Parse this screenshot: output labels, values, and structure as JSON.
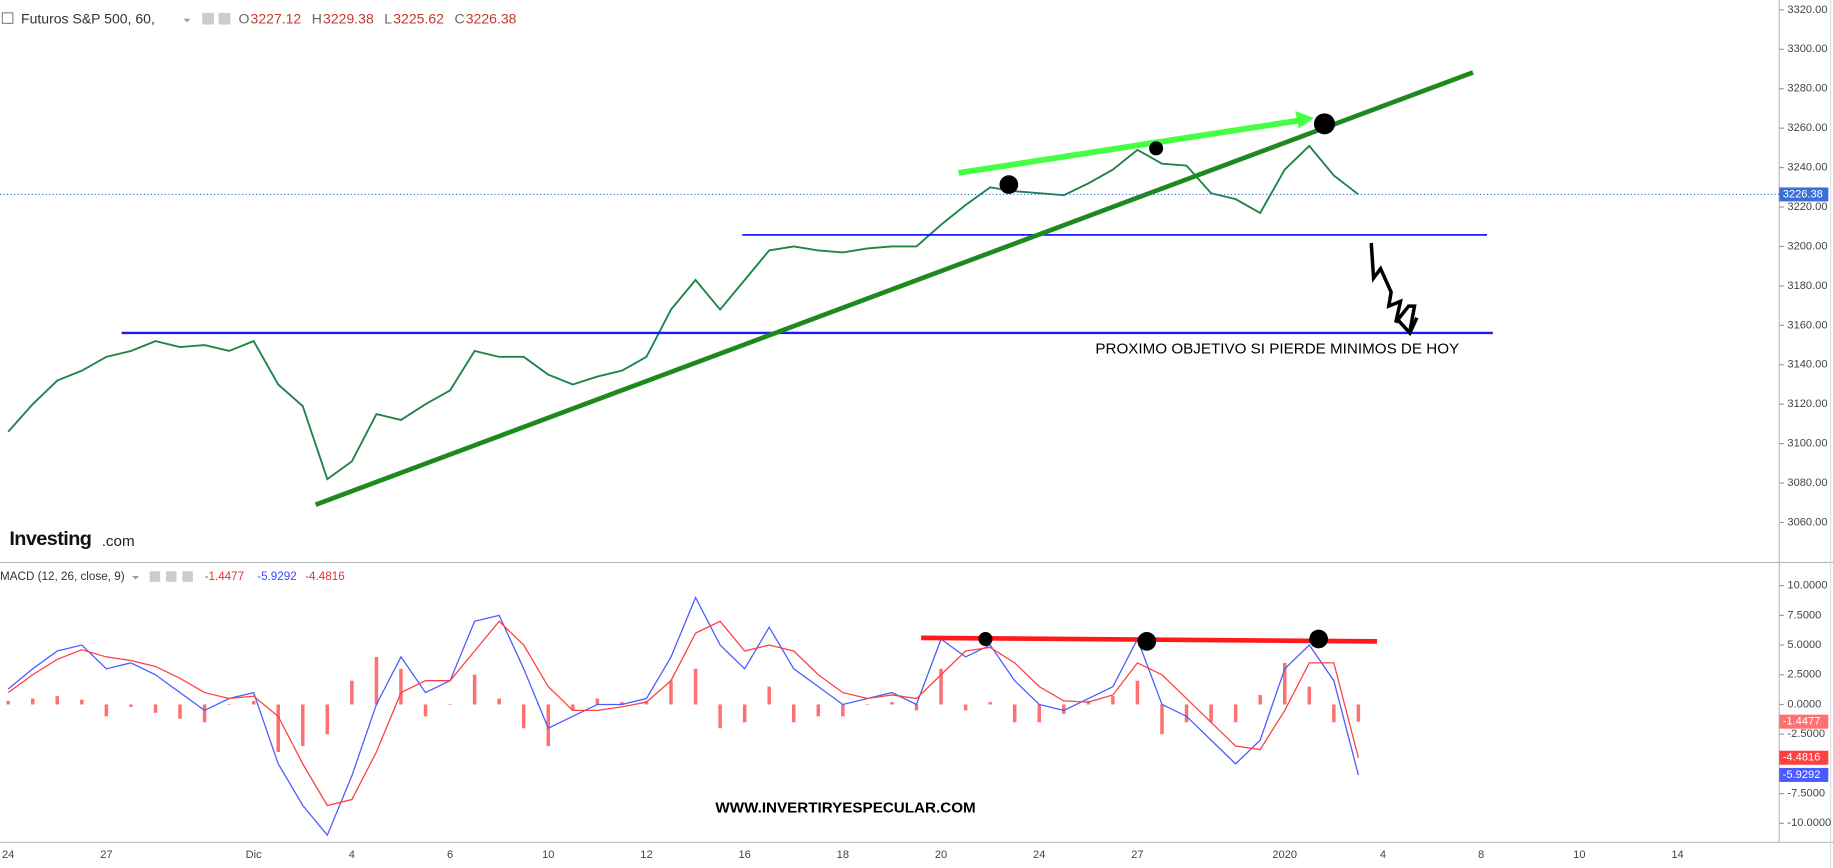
{
  "header": {
    "title": "Futuros S&P 500, 60,",
    "ohlc": [
      {
        "key": "O",
        "value": 3227.12
      },
      {
        "key": "H",
        "value": 3229.38
      },
      {
        "key": "L",
        "value": 3225.62
      },
      {
        "key": "C",
        "value": 3226.38
      }
    ],
    "logo": "Investing",
    "logo_suffix": ".com",
    "macd_title": "MACD (12, 26, close, 9)",
    "annotation": "PROXIMO OBJETIVO SI PIERDE MINIMOS DE HOY",
    "watermark": "WWW.INVERTIRYESPECULAR.COM"
  },
  "chart_data": [
    {
      "type": "line",
      "color": "#1e8449",
      "last_value_color": "#3a6fd8",
      "ylim": [
        3040,
        3325
      ],
      "yticks": [
        {
          "value": 3320,
          "label": "3320.00"
        },
        {
          "value": 3300,
          "label": "3300.00"
        },
        {
          "value": 3280,
          "label": "3280.00"
        },
        {
          "value": 3260,
          "label": "3260.00"
        },
        {
          "value": 3240,
          "label": "3240.00"
        },
        {
          "value": 3220,
          "label": "3220.00"
        },
        {
          "value": 3200,
          "label": "3200.00"
        },
        {
          "value": 3180,
          "label": "3180.00"
        },
        {
          "value": 3160,
          "label": "3160.00"
        },
        {
          "value": 3140,
          "label": "3140.00"
        },
        {
          "value": 3120,
          "label": "3120.00"
        },
        {
          "value": 3100,
          "label": "3100.00"
        },
        {
          "value": 3080,
          "label": "3080.00"
        },
        {
          "value": 3060,
          "label": "3060.00"
        }
      ],
      "values": [
        3106,
        3120,
        3132,
        3137,
        3144,
        3147,
        3152,
        3149,
        3150,
        3147,
        3152,
        3130,
        3119,
        3082,
        3091,
        3115,
        3112,
        3120,
        3127,
        3147,
        3144,
        3144,
        3135,
        3130,
        3134,
        3137,
        3144,
        3168,
        3183,
        3168,
        3183,
        3198,
        3200,
        3198,
        3197,
        3199,
        3200,
        3200,
        3211,
        3221,
        3230,
        3228,
        3227,
        3226,
        3232,
        3239,
        3249,
        3242,
        3241,
        3227,
        3224,
        3217,
        3239,
        3251,
        3236,
        3226.38,
        null,
        null,
        null,
        null,
        null,
        null,
        null,
        null,
        null,
        null,
        null,
        null,
        null,
        null,
        null,
        null
      ]
    },
    {
      "type": "line",
      "categories": [
        "24",
        null,
        null,
        null,
        "27",
        null,
        null,
        null,
        null,
        null,
        "Dic",
        null,
        null,
        null,
        "4",
        null,
        null,
        null,
        "6",
        null,
        null,
        null,
        "10",
        null,
        null,
        null,
        "12",
        null,
        null,
        null,
        "16",
        null,
        null,
        null,
        "18",
        null,
        null,
        null,
        "20",
        null,
        null,
        null,
        "24",
        null,
        null,
        null,
        "27",
        null,
        null,
        null,
        null,
        null,
        "2020",
        null,
        null,
        null,
        "4",
        null,
        null,
        null,
        "8",
        null,
        null,
        null,
        "10",
        null,
        null,
        null,
        "14",
        null,
        null,
        null
      ],
      "ylim": [
        -11.5,
        11.7
      ],
      "yticks": [
        {
          "value": 10,
          "label": "10.0000"
        },
        {
          "value": 7.5,
          "label": "7.5000"
        },
        {
          "value": 5,
          "label": "5.0000"
        },
        {
          "value": 2.5,
          "label": "2.5000"
        },
        {
          "value": 0,
          "label": "0.0000"
        },
        {
          "value": -2.5,
          "label": "-2.5000"
        },
        {
          "value": -7.5,
          "label": "-7.5000"
        },
        {
          "value": -10,
          "label": "-10.0000"
        }
      ],
      "series": [
        {
          "type": "bar",
          "color": "#ff7070",
          "values": [
            0.3,
            0.5,
            0.7,
            0.4,
            -1,
            -0.2,
            -0.7,
            -1.2,
            -1.5,
            0,
            0.3,
            -4,
            -3.5,
            -2.5,
            2,
            4,
            3,
            -1,
            0,
            2.5,
            0.5,
            -2,
            -3.5,
            -0.5,
            0.5,
            0.2,
            0.3,
            2,
            3,
            -2,
            -1.5,
            1.5,
            -1.5,
            -1,
            -1,
            0,
            0.2,
            -0.5,
            3,
            -0.5,
            0.2,
            -1.5,
            -1.5,
            -0.8,
            0.3,
            0.7,
            2,
            -2.5,
            -1.5,
            -1.5,
            -1.5,
            0.8,
            3.5,
            1.5,
            -1.5,
            -1.4477,
            null,
            null,
            null,
            null,
            null,
            null,
            null,
            null,
            null,
            null,
            null,
            null,
            null,
            null,
            null,
            null
          ]
        },
        {
          "type": "line",
          "color": "#4a5cff",
          "values": [
            1.3,
            3,
            4.5,
            5,
            3,
            3.5,
            2.5,
            1,
            -0.5,
            0.5,
            1,
            -5,
            -8.5,
            -11,
            -6,
            0,
            4,
            1,
            2,
            7,
            7.5,
            3,
            -2,
            -1,
            0,
            0,
            0.5,
            4,
            9,
            5,
            3,
            6.5,
            3,
            1.5,
            0,
            0.5,
            1,
            0,
            5.5,
            4,
            5,
            2,
            0,
            -0.5,
            0.5,
            1.5,
            5.5,
            0,
            -1,
            -3,
            -5,
            -3,
            3,
            5,
            2,
            -5.9292,
            null,
            null,
            null,
            null,
            null,
            null,
            null,
            null,
            null,
            null,
            null,
            null,
            null,
            null,
            null,
            null
          ]
        },
        {
          "type": "line",
          "color": "#ff4040",
          "values": [
            1,
            2.5,
            3.8,
            4.6,
            4,
            3.7,
            3.2,
            2.2,
            1,
            0.5,
            0.7,
            -1,
            -5,
            -8.5,
            -8,
            -4,
            1,
            2,
            2,
            4.5,
            7,
            5,
            1.5,
            -0.5,
            -0.5,
            -0.2,
            0.2,
            2,
            6,
            7,
            4.5,
            5,
            4.5,
            2.5,
            1,
            0.5,
            0.8,
            0.5,
            2.5,
            4.5,
            4.8,
            3.5,
            1.5,
            0.3,
            0.2,
            0.8,
            3.5,
            2.5,
            0.5,
            -1.5,
            -3.5,
            -3.8,
            -0.5,
            3.5,
            3.5,
            -4.4816,
            null,
            null,
            null,
            null,
            null,
            null,
            null,
            null,
            null,
            null,
            null,
            null,
            null,
            null,
            null,
            null
          ]
        }
      ]
    }
  ]
}
